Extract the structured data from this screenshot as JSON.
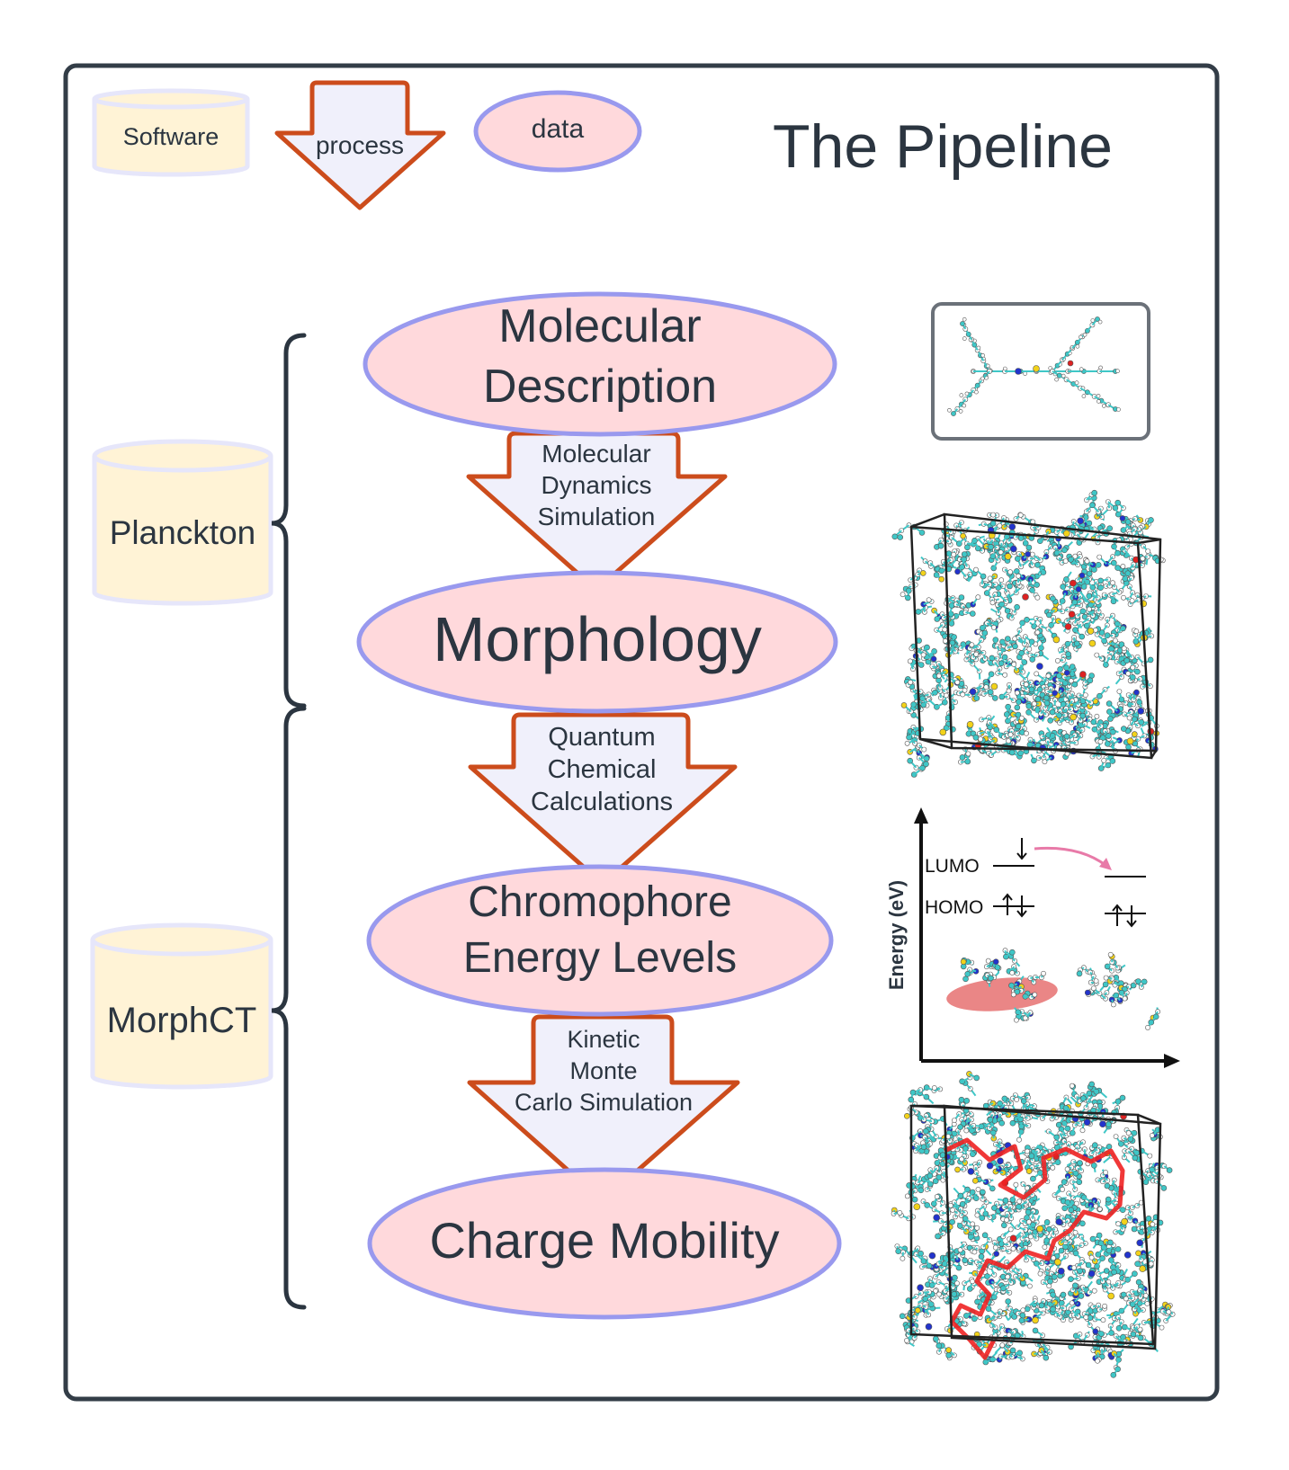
{
  "title": "The Pipeline",
  "legend": {
    "software": "Software",
    "process": "process",
    "data": "data"
  },
  "software": [
    {
      "name": "Planckton"
    },
    {
      "name": "MorphCT"
    }
  ],
  "data_nodes": [
    {
      "lines": [
        "Molecular",
        "Description"
      ]
    },
    {
      "lines": [
        "Morphology"
      ]
    },
    {
      "lines": [
        "Chromophore",
        "Energy Levels"
      ]
    },
    {
      "lines": [
        "Charge Mobility"
      ]
    }
  ],
  "processes": [
    {
      "lines": [
        "Molecular",
        "Dynamics",
        "Simulation"
      ]
    },
    {
      "lines": [
        "Quantum",
        "Chemical",
        "Calculations"
      ]
    },
    {
      "lines": [
        "Kinetic",
        "Monte",
        "Carlo Simulation"
      ]
    }
  ],
  "energy_diagram": {
    "ylabel": "Energy (eV)",
    "lumo": "LUMO",
    "homo": "HOMO"
  },
  "colors": {
    "frame": "#333d47",
    "text": "#2b3540",
    "data_fill": "#ffd9dc",
    "data_stroke": "#9999ee",
    "process_fill": "#f0f0fb",
    "process_stroke": "#cc4c1c",
    "software_fill": "#fff3d6",
    "software_stroke": "#e6e6fa",
    "atom_c": "#3fc7c7",
    "highlight": "#e35d5d"
  }
}
